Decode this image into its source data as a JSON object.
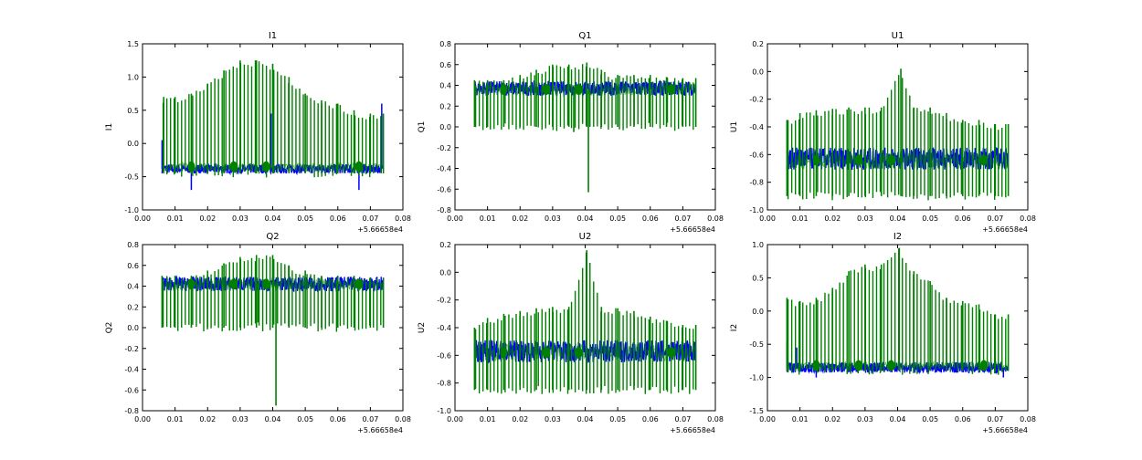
{
  "colors": {
    "series_a": "#0000ff",
    "series_b": "#008000",
    "axes": "#000000",
    "background": "#ffffff"
  },
  "chart_data": [
    {
      "type": "line",
      "title": "I1",
      "ylabel": "I1",
      "xlabel": "",
      "x_offset_label": "+5.66658e4",
      "xlim": [
        0.0,
        0.08
      ],
      "ylim": [
        -1.0,
        1.5
      ],
      "xticks": [
        "0.00",
        "0.01",
        "0.02",
        "0.03",
        "0.04",
        "0.05",
        "0.06",
        "0.07",
        "0.08"
      ],
      "yticks": [
        "-1.0",
        "-0.5",
        "0.0",
        "0.5",
        "1.0",
        "1.5"
      ],
      "grid": false,
      "legend": "none",
      "x_range": [
        0.006,
        0.074
      ],
      "series": [
        {
          "color": "#0000ff",
          "baseline": -0.38,
          "band": 0.07,
          "spikes": [
            {
              "x": 0.006,
              "y": 0.05
            },
            {
              "x": 0.015,
              "y": -0.7
            },
            {
              "x": 0.0395,
              "y": 0.45
            },
            {
              "x": 0.0665,
              "y": -0.7
            },
            {
              "x": 0.0735,
              "y": 0.6
            }
          ]
        },
        {
          "color": "#008000",
          "baseline": -0.35,
          "low": -0.45,
          "peaks": [
            {
              "x": 0.0065,
              "y": 0.7
            },
            {
              "x": 0.01,
              "y": 0.7
            },
            {
              "x": 0.015,
              "y": 0.75
            },
            {
              "x": 0.02,
              "y": 0.9
            },
            {
              "x": 0.025,
              "y": 1.1
            },
            {
              "x": 0.03,
              "y": 1.25
            },
            {
              "x": 0.035,
              "y": 1.25
            },
            {
              "x": 0.04,
              "y": 1.2
            },
            {
              "x": 0.045,
              "y": 1.0
            },
            {
              "x": 0.05,
              "y": 0.75
            },
            {
              "x": 0.055,
              "y": 0.65
            },
            {
              "x": 0.06,
              "y": 0.6
            },
            {
              "x": 0.065,
              "y": 0.5
            },
            {
              "x": 0.07,
              "y": 0.45
            },
            {
              "x": 0.074,
              "y": 0.45
            }
          ]
        }
      ]
    },
    {
      "type": "line",
      "title": "Q1",
      "ylabel": "Q1",
      "xlabel": "",
      "x_offset_label": "+5.66658e4",
      "xlim": [
        0.0,
        0.08
      ],
      "ylim": [
        -0.8,
        0.8
      ],
      "xticks": [
        "0.00",
        "0.01",
        "0.02",
        "0.03",
        "0.04",
        "0.05",
        "0.06",
        "0.07",
        "0.08"
      ],
      "yticks": [
        "-0.8",
        "-0.6",
        "-0.4",
        "-0.2",
        "0.0",
        "0.2",
        "0.4",
        "0.6",
        "0.8"
      ],
      "grid": false,
      "legend": "none",
      "x_range": [
        0.006,
        0.074
      ],
      "series": [
        {
          "color": "#0000ff",
          "baseline": 0.37,
          "band": 0.07,
          "spikes": []
        },
        {
          "color": "#008000",
          "baseline": 0.36,
          "low": 0.0,
          "peaks": [
            {
              "x": 0.006,
              "y": 0.45
            },
            {
              "x": 0.01,
              "y": 0.45
            },
            {
              "x": 0.015,
              "y": 0.45
            },
            {
              "x": 0.02,
              "y": 0.5
            },
            {
              "x": 0.025,
              "y": 0.55
            },
            {
              "x": 0.03,
              "y": 0.6
            },
            {
              "x": 0.035,
              "y": 0.6
            },
            {
              "x": 0.0405,
              "y": 0.62
            },
            {
              "x": 0.045,
              "y": 0.55
            },
            {
              "x": 0.05,
              "y": 0.5
            },
            {
              "x": 0.055,
              "y": 0.5
            },
            {
              "x": 0.06,
              "y": 0.5
            },
            {
              "x": 0.065,
              "y": 0.48
            },
            {
              "x": 0.07,
              "y": 0.47
            },
            {
              "x": 0.074,
              "y": 0.47
            }
          ],
          "dips": [
            {
              "x": 0.0365,
              "y": -0.05
            },
            {
              "x": 0.041,
              "y": -0.63
            }
          ]
        }
      ]
    },
    {
      "type": "line",
      "title": "U1",
      "ylabel": "U1",
      "xlabel": "",
      "x_offset_label": "+5.66658e4",
      "xlim": [
        0.0,
        0.08
      ],
      "ylim": [
        -1.0,
        0.2
      ],
      "xticks": [
        "0.00",
        "0.01",
        "0.02",
        "0.03",
        "0.04",
        "0.05",
        "0.06",
        "0.07",
        "0.08"
      ],
      "yticks": [
        "-1.0",
        "-0.8",
        "-0.6",
        "-0.4",
        "-0.2",
        "0.0",
        "0.2"
      ],
      "grid": false,
      "legend": "none",
      "x_range": [
        0.006,
        0.074
      ],
      "series": [
        {
          "color": "#0000ff",
          "baseline": -0.63,
          "band": 0.08,
          "spikes": []
        },
        {
          "color": "#008000",
          "baseline": -0.64,
          "low": -0.9,
          "peaks": [
            {
              "x": 0.006,
              "y": -0.35
            },
            {
              "x": 0.01,
              "y": -0.3
            },
            {
              "x": 0.015,
              "y": -0.28
            },
            {
              "x": 0.02,
              "y": -0.27
            },
            {
              "x": 0.025,
              "y": -0.26
            },
            {
              "x": 0.03,
              "y": -0.26
            },
            {
              "x": 0.035,
              "y": -0.26
            },
            {
              "x": 0.041,
              "y": 0.02
            },
            {
              "x": 0.045,
              "y": -0.26
            },
            {
              "x": 0.05,
              "y": -0.26
            },
            {
              "x": 0.055,
              "y": -0.3
            },
            {
              "x": 0.06,
              "y": -0.35
            },
            {
              "x": 0.065,
              "y": -0.35
            },
            {
              "x": 0.07,
              "y": -0.38
            },
            {
              "x": 0.074,
              "y": -0.38
            }
          ]
        }
      ]
    },
    {
      "type": "line",
      "title": "Q2",
      "ylabel": "Q2",
      "xlabel": "",
      "x_offset_label": "+5.66658e4",
      "xlim": [
        0.0,
        0.08
      ],
      "ylim": [
        -0.8,
        0.8
      ],
      "xticks": [
        "0.00",
        "0.01",
        "0.02",
        "0.03",
        "0.04",
        "0.05",
        "0.06",
        "0.07",
        "0.08"
      ],
      "yticks": [
        "-0.8",
        "-0.6",
        "-0.4",
        "-0.2",
        "0.0",
        "0.2",
        "0.4",
        "0.6",
        "0.8"
      ],
      "grid": false,
      "legend": "none",
      "x_range": [
        0.006,
        0.074
      ],
      "series": [
        {
          "color": "#0000ff",
          "baseline": 0.42,
          "band": 0.07,
          "spikes": []
        },
        {
          "color": "#008000",
          "baseline": 0.42,
          "low": 0.0,
          "peaks": [
            {
              "x": 0.006,
              "y": 0.5
            },
            {
              "x": 0.01,
              "y": 0.5
            },
            {
              "x": 0.015,
              "y": 0.5
            },
            {
              "x": 0.02,
              "y": 0.55
            },
            {
              "x": 0.025,
              "y": 0.62
            },
            {
              "x": 0.03,
              "y": 0.68
            },
            {
              "x": 0.035,
              "y": 0.7
            },
            {
              "x": 0.04,
              "y": 0.7
            },
            {
              "x": 0.045,
              "y": 0.6
            },
            {
              "x": 0.05,
              "y": 0.55
            },
            {
              "x": 0.055,
              "y": 0.5
            },
            {
              "x": 0.06,
              "y": 0.5
            },
            {
              "x": 0.065,
              "y": 0.5
            },
            {
              "x": 0.07,
              "y": 0.48
            },
            {
              "x": 0.074,
              "y": 0.48
            }
          ],
          "dips": [
            {
              "x": 0.0355,
              "y": 0.05
            },
            {
              "x": 0.041,
              "y": -0.75
            }
          ]
        }
      ]
    },
    {
      "type": "line",
      "title": "U2",
      "ylabel": "U2",
      "xlabel": "",
      "x_offset_label": "+5.66658e4",
      "xlim": [
        0.0,
        0.08
      ],
      "ylim": [
        -1.0,
        0.2
      ],
      "xticks": [
        "0.00",
        "0.01",
        "0.02",
        "0.03",
        "0.04",
        "0.05",
        "0.06",
        "0.07",
        "0.08"
      ],
      "yticks": [
        "-1.0",
        "-0.8",
        "-0.6",
        "-0.4",
        "-0.2",
        "0.0",
        "0.2"
      ],
      "grid": false,
      "legend": "none",
      "x_range": [
        0.006,
        0.074
      ],
      "series": [
        {
          "color": "#0000ff",
          "baseline": -0.57,
          "band": 0.08,
          "spikes": []
        },
        {
          "color": "#008000",
          "baseline": -0.58,
          "low": -0.85,
          "peaks": [
            {
              "x": 0.006,
              "y": -0.4
            },
            {
              "x": 0.01,
              "y": -0.33
            },
            {
              "x": 0.015,
              "y": -0.3
            },
            {
              "x": 0.02,
              "y": -0.28
            },
            {
              "x": 0.025,
              "y": -0.26
            },
            {
              "x": 0.03,
              "y": -0.25
            },
            {
              "x": 0.035,
              "y": -0.25
            },
            {
              "x": 0.0405,
              "y": 0.16
            },
            {
              "x": 0.045,
              "y": -0.25
            },
            {
              "x": 0.05,
              "y": -0.26
            },
            {
              "x": 0.055,
              "y": -0.28
            },
            {
              "x": 0.06,
              "y": -0.32
            },
            {
              "x": 0.065,
              "y": -0.35
            },
            {
              "x": 0.07,
              "y": -0.38
            },
            {
              "x": 0.074,
              "y": -0.38
            }
          ]
        }
      ]
    },
    {
      "type": "line",
      "title": "I2",
      "ylabel": "I2",
      "xlabel": "",
      "x_offset_label": "+5.66658e4",
      "xlim": [
        0.0,
        0.08
      ],
      "ylim": [
        -1.5,
        1.0
      ],
      "xticks": [
        "0.00",
        "0.01",
        "0.02",
        "0.03",
        "0.04",
        "0.05",
        "0.06",
        "0.07",
        "0.08"
      ],
      "yticks": [
        "-1.5",
        "-1.0",
        "-0.5",
        "0.0",
        "0.5",
        "1.0"
      ],
      "grid": false,
      "legend": "none",
      "x_range": [
        0.006,
        0.074
      ],
      "series": [
        {
          "color": "#0000ff",
          "baseline": -0.85,
          "band": 0.08,
          "spikes": [
            {
              "x": 0.006,
              "y": -0.45
            },
            {
              "x": 0.009,
              "y": -0.55
            },
            {
              "x": 0.015,
              "y": -1.0
            },
            {
              "x": 0.0725,
              "y": -1.0
            }
          ]
        },
        {
          "color": "#008000",
          "baseline": -0.82,
          "low": -0.9,
          "peaks": [
            {
              "x": 0.006,
              "y": 0.2
            },
            {
              "x": 0.01,
              "y": 0.15
            },
            {
              "x": 0.015,
              "y": 0.2
            },
            {
              "x": 0.02,
              "y": 0.35
            },
            {
              "x": 0.025,
              "y": 0.6
            },
            {
              "x": 0.03,
              "y": 0.7
            },
            {
              "x": 0.035,
              "y": 0.7
            },
            {
              "x": 0.0405,
              "y": 0.95
            },
            {
              "x": 0.045,
              "y": 0.6
            },
            {
              "x": 0.05,
              "y": 0.45
            },
            {
              "x": 0.055,
              "y": 0.2
            },
            {
              "x": 0.06,
              "y": 0.15
            },
            {
              "x": 0.065,
              "y": 0.1
            },
            {
              "x": 0.07,
              "y": -0.05
            },
            {
              "x": 0.074,
              "y": -0.05
            }
          ]
        }
      ]
    }
  ]
}
